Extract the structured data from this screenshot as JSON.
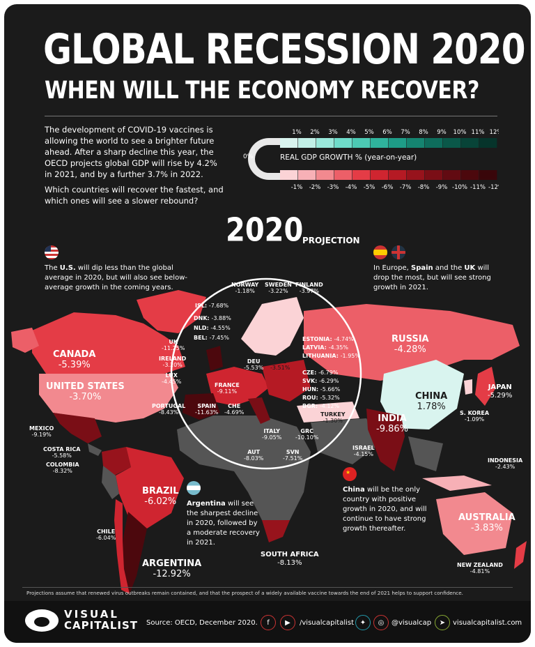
{
  "header": {
    "title": "GLOBAL RECESSION 2020",
    "subtitle": "WHEN WILL THE ECONOMY RECOVER?"
  },
  "intro": {
    "p1": "The development of COVID-19 vaccines is allowing the world to see a brighter future ahead. After a sharp decline this year, the OECD projects global GDP will rise by 4.2% in 2021, and by a further 3.7% in 2022.",
    "p2": "Which countries will recover the fastest, and which ones will see a slower rebound?"
  },
  "legend": {
    "title": "REAL GDP GROWTH % (year-on-year)",
    "zero": "0%",
    "positive": [
      "1%",
      "2%",
      "3%",
      "4%",
      "5%",
      "6%",
      "7%",
      "8%",
      "9%",
      "10%",
      "11%",
      "12%"
    ],
    "negative": [
      "-1%",
      "-2%",
      "-3%",
      "-4%",
      "-5%",
      "-6%",
      "-7%",
      "-8%",
      "-9%",
      "-10%",
      "-11%",
      "-12%"
    ],
    "positive_colors": [
      "#d9f4ef",
      "#c1efe6",
      "#9ae8da",
      "#6fdcca",
      "#4cc9b3",
      "#2fb39c",
      "#1e9c87",
      "#158470",
      "#0e6d5c",
      "#0a5849",
      "#084438",
      "#06342b"
    ],
    "negative_colors": [
      "#fbd3d6",
      "#f7b0b6",
      "#f2898f",
      "#ec5f68",
      "#e43c46",
      "#cf2530",
      "#b51a24",
      "#97131c",
      "#7a0e16",
      "#620b12",
      "#4c080d",
      "#39060a"
    ]
  },
  "projection": {
    "year": "2020",
    "label": "PROJECTION"
  },
  "notes": {
    "us": {
      "bold": "U.S.",
      "pre": "The ",
      "rest": " will dip less than the global average in 2020, but will also see below-average growth in the coming years."
    },
    "europe": {
      "pre": "In Europe, ",
      "b1": "Spain",
      "mid": " and the ",
      "b2": "UK",
      "rest": " will drop the most, but will see strong growth in 2021."
    },
    "argentina": {
      "bold": "Argentina",
      "rest": " will see the sharpest decline in 2020, followed by a moderate recovery in 2021."
    },
    "china": {
      "bold": "China",
      "rest": " will be the only country with positive growth in 2020, and will continue to have strong growth thereafter."
    }
  },
  "countries": {
    "canada": {
      "name": "CANADA",
      "value": "-5.39%"
    },
    "us": {
      "name": "UNITED STATES",
      "value": "-3.70%"
    },
    "mexico": {
      "name": "MEXICO",
      "value": "-9.19%"
    },
    "costa_rica": {
      "name": "COSTA RICA",
      "value": "-5.58%"
    },
    "colombia": {
      "name": "COLOMBIA",
      "value": "-8.32%"
    },
    "brazil": {
      "name": "BRAZIL",
      "value": "-6.02%"
    },
    "chile": {
      "name": "CHILE",
      "value": "-6.04%"
    },
    "argentina": {
      "name": "ARGENTINA",
      "value": "-12.92%"
    },
    "south_africa": {
      "name": "SOUTH AFRICA",
      "value": "-8.13%"
    },
    "russia": {
      "name": "RUSSIA",
      "value": "-4.28%"
    },
    "china": {
      "name": "CHINA",
      "value": "1.78%"
    },
    "japan": {
      "name": "JAPAN",
      "value": "-5.29%"
    },
    "s_korea": {
      "name": "S. KOREA",
      "value": "-1.09%"
    },
    "india": {
      "name": "INDIA",
      "value": "-9.86%"
    },
    "indonesia": {
      "name": "INDONESIA",
      "value": "-2.43%"
    },
    "australia": {
      "name": "AUSTRALIA",
      "value": "-3.83%"
    },
    "new_zealand": {
      "name": "NEW ZEALAND",
      "value": "-4.81%"
    },
    "israel": {
      "name": "ISRAEL",
      "value": "-4.15%"
    },
    "isl": {
      "name": "ISL",
      "value": "-7.68%"
    },
    "norway": {
      "name": "NORWAY",
      "value": "-1.18%"
    },
    "sweden": {
      "name": "SWEDEN",
      "value": "-3.22%"
    },
    "finland": {
      "name": "FINLAND",
      "value": "-3.97%"
    },
    "dnk": {
      "name": "DNK",
      "value": "-3.88%"
    },
    "nld": {
      "name": "NLD",
      "value": "-4.55%"
    },
    "bel": {
      "name": "BEL",
      "value": "-7.45%"
    },
    "uk": {
      "name": "UK",
      "value": "-11.25%"
    },
    "ireland": {
      "name": "IRELAND",
      "value": "-3.20%"
    },
    "lux": {
      "name": "LUX",
      "value": "-4.45%"
    },
    "france": {
      "name": "FRANCE",
      "value": "-9.11%"
    },
    "portugal": {
      "name": "PORTUGAL",
      "value": "-8.43%"
    },
    "spain": {
      "name": "SPAIN",
      "value": "-11.63%"
    },
    "che": {
      "name": "CHE",
      "value": "-4.69%"
    },
    "deu": {
      "name": "DEU",
      "value": "-5.53%"
    },
    "pol": {
      "name": "POL",
      "value": "-3.51%"
    },
    "italy": {
      "name": "ITALY",
      "value": "-9.05%"
    },
    "aut": {
      "name": "AUT",
      "value": "-8.03%"
    },
    "svn": {
      "name": "SVN",
      "value": "-7.51%"
    },
    "grc": {
      "name": "GRC",
      "value": "-10.10%"
    },
    "turkey": {
      "name": "TURKEY",
      "value": "-1.30%"
    },
    "estonia": {
      "name": "ESTONIA",
      "value": "-4.74%"
    },
    "latvia": {
      "name": "LATVIA",
      "value": "-4.35%"
    },
    "lithuania": {
      "name": "LITHUANIA",
      "value": "-1.95%"
    },
    "cze": {
      "name": "CZE",
      "value": "-6.79%"
    },
    "svk": {
      "name": "SVK",
      "value": "-6.29%"
    },
    "hun": {
      "name": "HUN",
      "value": "-5.66%"
    },
    "rou": {
      "name": "ROU",
      "value": "-5.32%"
    },
    "bgr": {
      "name": "BGR",
      "value": "-4.12%"
    }
  },
  "footer": {
    "disclaimer": "Projections assume that renewed virus outbreaks remain contained, and that the prospect of a widely available vaccine towards the end of 2021 helps to support confidence.",
    "brand_line1": "VISUAL",
    "brand_line2": "CAPITALIST",
    "source": "Source: OECD, December 2020.",
    "handle1": "/visualcapitalist",
    "handle2": "@visualcap",
    "website": "visualcapitalist.com"
  },
  "icons": [
    "facebook-icon",
    "youtube-icon",
    "twitter-icon",
    "instagram-icon",
    "cursor-icon",
    "logo-icon"
  ]
}
